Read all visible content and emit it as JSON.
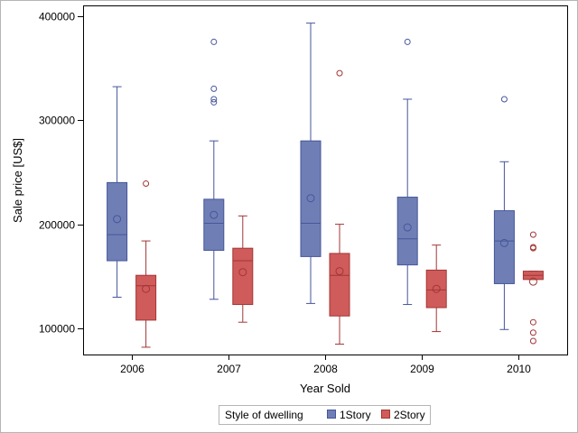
{
  "chart_data": {
    "type": "boxplot",
    "xlabel": "Year Sold",
    "ylabel": "Sale price [US$]",
    "categories": [
      "2006",
      "2007",
      "2008",
      "2009",
      "2010"
    ],
    "ylim": [
      75000,
      410000
    ],
    "yticks": [
      100000,
      200000,
      300000,
      400000
    ],
    "legend": {
      "title": "Style of dwelling",
      "position": "bottom-center",
      "entries": [
        "1Story",
        "2Story"
      ]
    },
    "grid": false,
    "series": [
      {
        "name": "1Story",
        "color": "#6f7fb5",
        "edge_color": "#46559a",
        "boxes": [
          {
            "category": "2006",
            "whisker_low": 130000,
            "q1": 165000,
            "median": 190000,
            "q3": 240000,
            "whisker_high": 332000,
            "mean": 205000,
            "outliers": []
          },
          {
            "category": "2007",
            "whisker_low": 128000,
            "q1": 175000,
            "median": 201000,
            "q3": 224000,
            "whisker_high": 280000,
            "mean": 209000,
            "outliers": [
              317000,
              320000,
              330000,
              375000
            ]
          },
          {
            "category": "2008",
            "whisker_low": 124000,
            "q1": 169000,
            "median": 201000,
            "q3": 280000,
            "whisker_high": 393000,
            "mean": 225000,
            "outliers": []
          },
          {
            "category": "2009",
            "whisker_low": 123000,
            "q1": 161000,
            "median": 186000,
            "q3": 226000,
            "whisker_high": 320000,
            "mean": 197000,
            "outliers": [
              375000
            ]
          },
          {
            "category": "2010",
            "whisker_low": 99000,
            "q1": 143000,
            "median": 184000,
            "q3": 213000,
            "whisker_high": 260000,
            "mean": 182000,
            "outliers": [
              320000
            ]
          }
        ]
      },
      {
        "name": "2Story",
        "color": "#d05b5b",
        "edge_color": "#a23636",
        "boxes": [
          {
            "category": "2006",
            "whisker_low": 82000,
            "q1": 108000,
            "median": 141000,
            "q3": 151000,
            "whisker_high": 184000,
            "mean": 138000,
            "outliers": [
              239000
            ]
          },
          {
            "category": "2007",
            "whisker_low": 106000,
            "q1": 123000,
            "median": 165000,
            "q3": 177000,
            "whisker_high": 208000,
            "mean": 154000,
            "outliers": []
          },
          {
            "category": "2008",
            "whisker_low": 85000,
            "q1": 112000,
            "median": 151000,
            "q3": 172000,
            "whisker_high": 200000,
            "mean": 155000,
            "outliers": [
              345000
            ]
          },
          {
            "category": "2009",
            "whisker_low": 97000,
            "q1": 120000,
            "median": 137000,
            "q3": 156000,
            "whisker_high": 180000,
            "mean": 138000,
            "outliers": []
          },
          {
            "category": "2010",
            "whisker_low": 147000,
            "q1": 147000,
            "median": 151000,
            "q3": 155000,
            "whisker_high": 155000,
            "mean": 145000,
            "outliers": [
              88000,
              96000,
              106000,
              177000,
              178000,
              190000
            ]
          }
        ]
      }
    ]
  }
}
